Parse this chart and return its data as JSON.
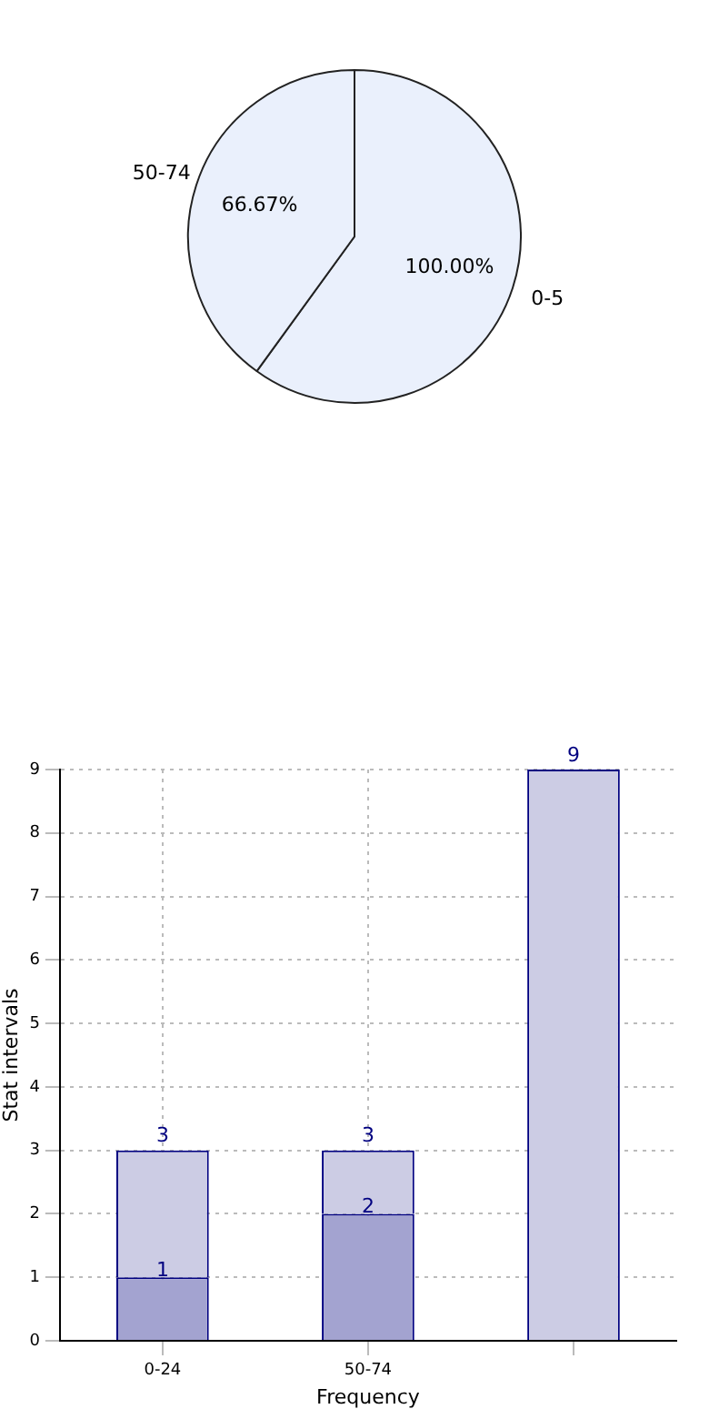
{
  "chart_data": [
    {
      "type": "pie",
      "categories": [
        "0-5",
        "50-74"
      ],
      "values": [
        100,
        66.67
      ],
      "value_labels": [
        "100.00%",
        "66.67%"
      ],
      "colors": [
        "#eaf0fc",
        "#eaf0fc"
      ],
      "legend": false
    },
    {
      "type": "bar",
      "categories": [
        "0-24",
        "50-74",
        null
      ],
      "xlabel": "Frequency",
      "ylabel": "Stat intervals",
      "ylim": [
        0,
        9
      ],
      "yticks": [
        0,
        1,
        2,
        3,
        4,
        5,
        6,
        7,
        8,
        9
      ],
      "grid": true,
      "stacked": true,
      "totals": [
        "3",
        "3",
        "9"
      ],
      "legend": false,
      "series": [
        {
          "color": "#a3a3d0",
          "values": [
            1,
            2,
            null
          ],
          "value_labels": [
            "1",
            "2",
            null
          ]
        },
        {
          "color": "#cccce4",
          "values": [
            2,
            1,
            9
          ]
        }
      ]
    }
  ]
}
